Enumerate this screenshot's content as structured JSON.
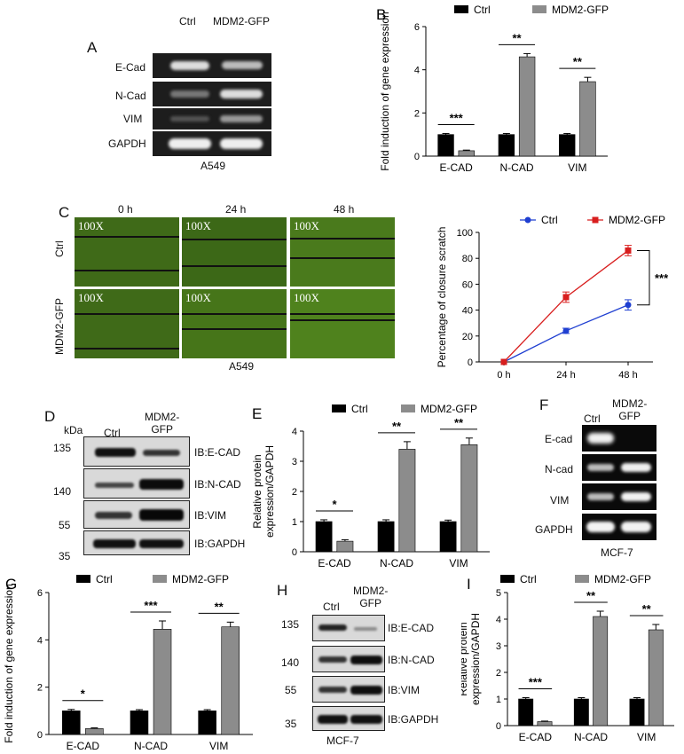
{
  "panels": {
    "A": {
      "letter": "A",
      "lanes": [
        "Ctrl",
        "MDM2-GFP"
      ],
      "rows": [
        "E-Cad",
        "N-Cad",
        "VIM",
        "GAPDH"
      ],
      "caption": "A549"
    },
    "C": {
      "letter": "C",
      "time_cols": [
        "0 h",
        "24 h",
        "48 h"
      ],
      "row_labels": [
        "Ctrl",
        "MDM2-GFP"
      ],
      "magnification": "100X",
      "caption": "A549"
    },
    "D": {
      "letter": "D",
      "kda_label": "kDa",
      "lanes": [
        "Ctrl",
        "MDM2-\nGFP"
      ],
      "markers": [
        "135",
        "140",
        "55",
        "35"
      ],
      "blots": [
        "IB:E-CAD",
        "IB:N-CAD",
        "IB:VIM",
        "IB:GAPDH"
      ]
    },
    "F": {
      "letter": "F",
      "lanes": [
        "Ctrl",
        "MDM2-\nGFP"
      ],
      "rows": [
        "E-cad",
        "N-cad",
        "VIM",
        "GAPDH"
      ],
      "caption": "MCF-7"
    },
    "H": {
      "letter": "H",
      "lanes": [
        "Ctrl",
        "MDM2-\nGFP"
      ],
      "markers": [
        "135",
        "140",
        "55",
        "35"
      ],
      "blots": [
        "IB:E-CAD",
        "IB:N-CAD",
        "IB:VIM",
        "IB:GAPDH"
      ],
      "caption": "MCF-7"
    }
  },
  "colors": {
    "ctrl": "#000000",
    "mdm2": "#8c8c8c",
    "line_ctrl": "#1f3fd1",
    "line_mdm2": "#d81e1e"
  },
  "chart_data": [
    {
      "id": "B",
      "letter": "B",
      "type": "bar",
      "categories": [
        "E-CAD",
        "N-CAD",
        "VIM"
      ],
      "series": [
        {
          "name": "Ctrl",
          "values": [
            1.0,
            1.0,
            1.0
          ],
          "errors": [
            0.05,
            0.05,
            0.05
          ]
        },
        {
          "name": "MDM2-GFP",
          "values": [
            0.25,
            4.6,
            3.45
          ],
          "errors": [
            0.03,
            0.15,
            0.2
          ]
        }
      ],
      "significance": [
        "***",
        "**",
        "**"
      ],
      "ylabel": "Fold induction of gene expression",
      "ylim": [
        0,
        6
      ],
      "yticks": [
        0,
        2,
        4,
        6
      ],
      "legend": "top"
    },
    {
      "id": "C",
      "type": "line",
      "x": [
        "0 h",
        "24 h",
        "48 h"
      ],
      "series": [
        {
          "name": "Ctrl",
          "values": [
            0,
            24,
            44
          ],
          "errors": [
            0,
            2,
            4
          ]
        },
        {
          "name": "MDM2-GFP",
          "values": [
            0,
            50,
            86
          ],
          "errors": [
            0,
            4,
            4
          ]
        }
      ],
      "significance": [
        "***"
      ],
      "ylabel": "Percentage of closure scratch",
      "ylim": [
        0,
        100
      ],
      "yticks": [
        0,
        20,
        40,
        60,
        80,
        100
      ],
      "legend": "top"
    },
    {
      "id": "E",
      "letter": "E",
      "type": "bar",
      "categories": [
        "E-CAD",
        "N-CAD",
        "VIM"
      ],
      "series": [
        {
          "name": "Ctrl",
          "values": [
            1.0,
            1.0,
            1.0
          ],
          "errors": [
            0.06,
            0.06,
            0.05
          ]
        },
        {
          "name": "MDM2-GFP",
          "values": [
            0.35,
            3.4,
            3.55
          ],
          "errors": [
            0.05,
            0.25,
            0.22
          ]
        }
      ],
      "significance": [
        "*",
        "**",
        "**"
      ],
      "ylabel": "Relative protein\nexpression/GAPDH",
      "ylim": [
        0,
        4
      ],
      "yticks": [
        0,
        1,
        2,
        3,
        4
      ],
      "legend": "top"
    },
    {
      "id": "G",
      "letter": "G",
      "type": "bar",
      "categories": [
        "E-CAD",
        "N-CAD",
        "VIM"
      ],
      "series": [
        {
          "name": "Ctrl",
          "values": [
            1.0,
            1.0,
            1.0
          ],
          "errors": [
            0.06,
            0.05,
            0.05
          ]
        },
        {
          "name": "MDM2-GFP",
          "values": [
            0.25,
            4.45,
            4.55
          ],
          "errors": [
            0.03,
            0.35,
            0.2
          ]
        }
      ],
      "significance": [
        "*",
        "***",
        "**"
      ],
      "ylabel": "Fold induction of gene expression",
      "ylim": [
        0,
        6
      ],
      "yticks": [
        0,
        2,
        4,
        6
      ],
      "legend": "top"
    },
    {
      "id": "I",
      "letter": "I",
      "type": "bar",
      "categories": [
        "E-CAD",
        "N-CAD",
        "VIM"
      ],
      "series": [
        {
          "name": "Ctrl",
          "values": [
            1.0,
            1.0,
            1.0
          ],
          "errors": [
            0.05,
            0.05,
            0.05
          ]
        },
        {
          "name": "MDM2-GFP",
          "values": [
            0.15,
            4.1,
            3.6
          ],
          "errors": [
            0.02,
            0.2,
            0.2
          ]
        }
      ],
      "significance": [
        "***",
        "**",
        "**"
      ],
      "ylabel": "Relative protein\nexpression/GAPDH",
      "ylim": [
        0,
        5
      ],
      "yticks": [
        0,
        1,
        2,
        3,
        4,
        5
      ],
      "legend": "top"
    }
  ]
}
